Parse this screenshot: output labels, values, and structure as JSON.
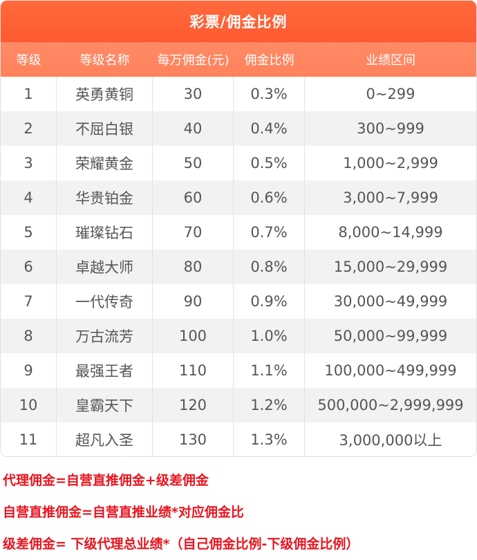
{
  "table": {
    "title": "彩票/佣金比例",
    "headers": [
      "等级",
      "等级名称",
      "每万佣金(元)",
      "佣金比例",
      "业绩区间"
    ],
    "rows": [
      [
        "1",
        "英勇黄铜",
        "30",
        "0.3%",
        "0~299"
      ],
      [
        "2",
        "不屈白银",
        "40",
        "0.4%",
        "300~999"
      ],
      [
        "3",
        "荣耀黄金",
        "50",
        "0.5%",
        "1,000~2,999"
      ],
      [
        "4",
        "华贵铂金",
        "60",
        "0.6%",
        "3,000~7,999"
      ],
      [
        "5",
        "璀璨钻石",
        "70",
        "0.7%",
        "8,000~14,999"
      ],
      [
        "6",
        "卓越大师",
        "80",
        "0.8%",
        "15,000~29,999"
      ],
      [
        "7",
        "一代传奇",
        "90",
        "0.9%",
        "30,000~49,999"
      ],
      [
        "8",
        "万古流芳",
        "100",
        "1.0%",
        "50,000~99,999"
      ],
      [
        "9",
        "最强王者",
        "110",
        "1.1%",
        "100,000~499,999"
      ],
      [
        "10",
        "皇霸天下",
        "120",
        "1.2%",
        "500,000~2,999,999"
      ],
      [
        "11",
        "超凡入圣",
        "130",
        "1.3%",
        "3,000,000以上"
      ]
    ]
  },
  "notes": [
    "代理佣金=自营直推佣金+级差佣金",
    "自营直推佣金=自营直推业绩*对应佣金比",
    "级差佣金= 下级代理总业绩*（自己佣金比例-下级佣金比例）"
  ],
  "colors": {
    "title_bg": "#ff5f36",
    "header_bg": "#ff865f",
    "note_text": "#e8141e",
    "row_alt_bg": "#f2f2f2"
  }
}
